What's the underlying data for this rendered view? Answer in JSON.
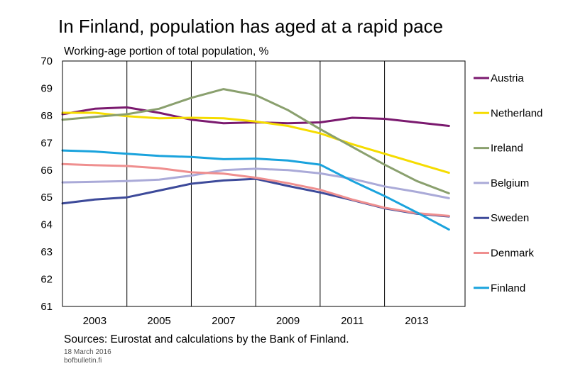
{
  "title": "In Finland, population has aged at a rapid pace",
  "source_note": "Sources: Eurostat and calculations by the Bank of Finland.",
  "date_note": "18 March 2016",
  "site_note": "bofbulletin.fi",
  "chart_data": {
    "type": "line",
    "ylabel": "Working-age portion of total population, %",
    "xlabel": "",
    "ylim": [
      61,
      70
    ],
    "yticks": [
      61,
      62,
      63,
      64,
      65,
      66,
      67,
      68,
      69,
      70
    ],
    "xlim": [
      2002,
      2014.5
    ],
    "xtick_labels": [
      "2003",
      "2005",
      "2007",
      "2009",
      "2011",
      "2013"
    ],
    "xtick_positions": [
      2003,
      2005,
      2007,
      2009,
      2011,
      2013
    ],
    "vertical_gridlines_at": [
      2004,
      2006,
      2008,
      2010,
      2012
    ],
    "legend_placement": "right",
    "x": [
      2002,
      2003,
      2004,
      2005,
      2006,
      2007,
      2008,
      2009,
      2010,
      2011,
      2012,
      2013,
      2014
    ],
    "series": [
      {
        "name": "Austria",
        "color": "#7b1a6f",
        "values": [
          68.05,
          68.25,
          68.3,
          68.1,
          67.85,
          67.72,
          67.75,
          67.72,
          67.75,
          67.92,
          67.88,
          67.75,
          67.62
        ]
      },
      {
        "name": "Netherland",
        "color": "#f5dc00",
        "values": [
          68.1,
          68.1,
          67.98,
          67.9,
          67.92,
          67.9,
          67.78,
          67.62,
          67.35,
          66.95,
          66.6,
          66.25,
          65.9
        ]
      },
      {
        "name": "Ireland",
        "color": "#8aa06e",
        "values": [
          67.85,
          67.95,
          68.05,
          68.25,
          68.65,
          68.97,
          68.75,
          68.2,
          67.5,
          66.85,
          66.2,
          65.6,
          65.15
        ]
      },
      {
        "name": "Belgium",
        "color": "#aaaad8",
        "values": [
          65.55,
          65.57,
          65.6,
          65.65,
          65.8,
          66.0,
          66.05,
          66.0,
          65.88,
          65.68,
          65.4,
          65.2,
          64.97
        ]
      },
      {
        "name": "Sweden",
        "color": "#3d4a9a",
        "values": [
          64.78,
          64.92,
          65.0,
          65.25,
          65.5,
          65.62,
          65.68,
          65.42,
          65.18,
          64.9,
          64.6,
          64.4,
          64.3
        ]
      },
      {
        "name": "Denmark",
        "color": "#ef8f8f",
        "values": [
          66.22,
          66.18,
          66.15,
          66.07,
          65.92,
          65.87,
          65.72,
          65.52,
          65.28,
          64.92,
          64.62,
          64.42,
          64.32
        ]
      },
      {
        "name": "Finland",
        "color": "#1aa3dd",
        "values": [
          66.72,
          66.68,
          66.6,
          66.52,
          66.48,
          66.4,
          66.42,
          66.35,
          66.2,
          65.6,
          65.05,
          64.45,
          63.82
        ]
      }
    ]
  }
}
